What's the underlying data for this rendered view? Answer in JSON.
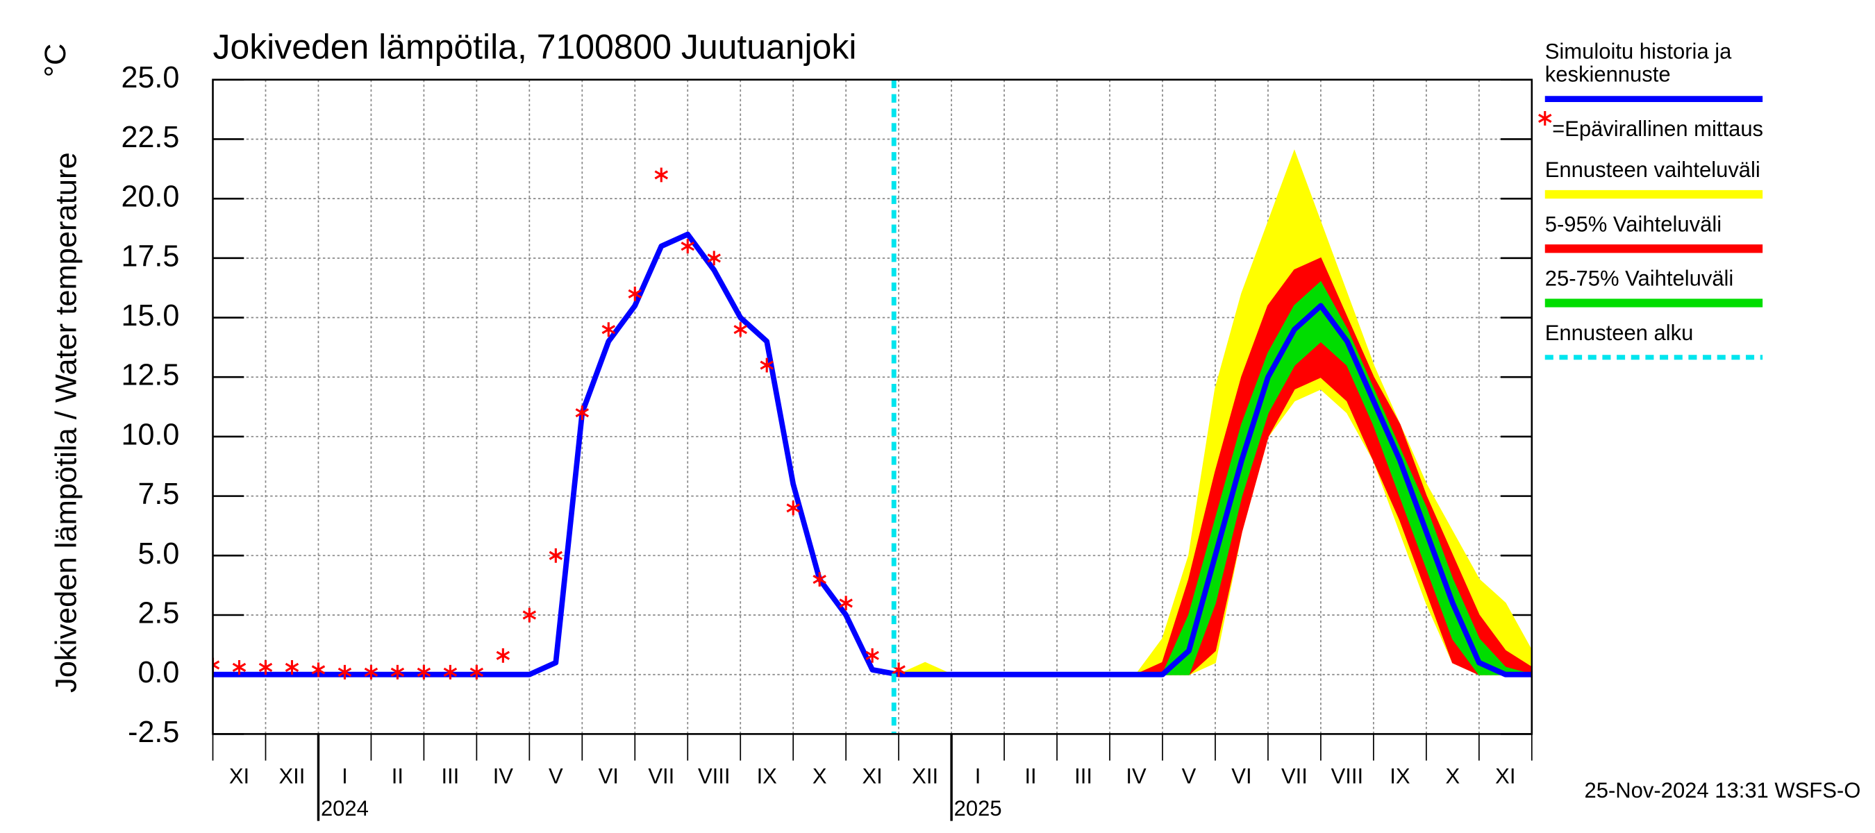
{
  "chart_data": {
    "type": "line",
    "title": "Jokiveden lämpötila, 7100800 Juutuanjoki",
    "y_label": "Jokiveden lämpötila / Water temperature",
    "y_unit": "°C",
    "footer": "25-Nov-2024 13:31 WSFS-O",
    "categories": [
      null,
      "XI",
      null,
      "XII",
      null,
      "I",
      null,
      "II",
      null,
      "III",
      null,
      "IV",
      null,
      "V",
      null,
      "VI",
      null,
      "VII",
      null,
      "VIII",
      null,
      "IX",
      null,
      "X",
      null,
      "XI",
      null,
      "XII",
      null,
      "I",
      null,
      "II",
      null,
      "III",
      null,
      "IV",
      null,
      "V",
      null,
      "VI",
      null,
      "VII",
      null,
      "VIII",
      null,
      "IX",
      null,
      "X",
      null,
      "XI",
      null
    ],
    "year_labels": [
      "2024",
      "2025"
    ],
    "ylim": [
      -2.5,
      25
    ],
    "yticks": [
      -2.5,
      {
        "value": 0,
        "label": "0.0"
      },
      2.5,
      {
        "value": 5,
        "label": "5.0"
      },
      7.5,
      {
        "value": 10,
        "label": "10.0"
      },
      12.5,
      {
        "value": 15,
        "label": "15.0"
      },
      17.5,
      {
        "value": 20,
        "label": "20.0"
      },
      22.5,
      {
        "value": 25,
        "label": "25.0"
      }
    ],
    "grid": true,
    "series": [
      {
        "name": "Simuloitu historia ja keskiennuste",
        "color": "#0000ff",
        "values": [
          0,
          0,
          0,
          0,
          0,
          0,
          0,
          0,
          0,
          0,
          0,
          0,
          0,
          0.5,
          11,
          14,
          15.5,
          18,
          18.5,
          17,
          15,
          14,
          8,
          4,
          2.5,
          0.2,
          0,
          0,
          0,
          0,
          0,
          0,
          0,
          0,
          0,
          0,
          0,
          1,
          5,
          9,
          12.5,
          14.5,
          15.5,
          14,
          11.5,
          9,
          6,
          3,
          0.5,
          0,
          0
        ]
      }
    ],
    "measurements": {
      "name": "=Epävirallinen mittaus",
      "color": "#ff0000",
      "values": [
        0.4,
        0.3,
        0.3,
        0.3,
        0.2,
        0.1,
        0.1,
        0.1,
        0.1,
        0.1,
        0.1,
        0.8,
        2.5,
        5,
        11,
        14.5,
        16,
        21,
        18,
        17.5,
        14.5,
        13,
        7,
        4,
        3,
        0.8,
        0.2,
        null,
        null,
        null,
        null,
        null,
        null,
        null,
        null,
        null,
        null,
        null,
        null,
        null,
        null,
        null,
        null,
        null,
        null,
        null,
        null,
        null,
        null,
        null,
        null
      ]
    },
    "bands": [
      {
        "name": "Ennusteen vaihteluväli",
        "color": "#ffff00",
        "high": [
          null,
          null,
          null,
          null,
          null,
          null,
          null,
          null,
          null,
          null,
          null,
          null,
          null,
          null,
          null,
          null,
          null,
          null,
          null,
          null,
          null,
          null,
          null,
          null,
          null,
          null,
          0,
          0.5,
          0,
          0,
          0,
          0,
          0,
          0,
          0,
          0,
          1.5,
          5,
          12,
          16,
          19,
          22,
          19,
          16,
          13,
          10.5,
          8,
          6,
          4,
          3,
          1
        ],
        "low": [
          null,
          null,
          null,
          null,
          null,
          null,
          null,
          null,
          null,
          null,
          null,
          null,
          null,
          null,
          null,
          null,
          null,
          null,
          null,
          null,
          null,
          null,
          null,
          null,
          null,
          null,
          0,
          0,
          0,
          0,
          0,
          0,
          0,
          0,
          0,
          0,
          0,
          0,
          0.5,
          6,
          10,
          11.5,
          12,
          11,
          9,
          6,
          3,
          0.5,
          0,
          0,
          0
        ]
      },
      {
        "name": "5-95% Vaihteluväli",
        "color": "#ff0000",
        "high": [
          null,
          null,
          null,
          null,
          null,
          null,
          null,
          null,
          null,
          null,
          null,
          null,
          null,
          null,
          null,
          null,
          null,
          null,
          null,
          null,
          null,
          null,
          null,
          null,
          null,
          null,
          0,
          0,
          0,
          0,
          0,
          0,
          0,
          0,
          0,
          0,
          0.5,
          4,
          8.5,
          12.5,
          15.5,
          17,
          17.5,
          15,
          12.5,
          10.5,
          7.5,
          5,
          2.5,
          1,
          0.3
        ],
        "low": [
          null,
          null,
          null,
          null,
          null,
          null,
          null,
          null,
          null,
          null,
          null,
          null,
          null,
          null,
          null,
          null,
          null,
          null,
          null,
          null,
          null,
          null,
          null,
          null,
          null,
          null,
          0,
          0,
          0,
          0,
          0,
          0,
          0,
          0,
          0,
          0,
          0,
          0,
          1,
          6,
          10,
          12,
          12.5,
          11.5,
          9,
          6.5,
          3.5,
          0.5,
          0,
          0,
          0
        ]
      },
      {
        "name": "25-75% Vaihteluväli",
        "color": "#00dd00",
        "high": [
          null,
          null,
          null,
          null,
          null,
          null,
          null,
          null,
          null,
          null,
          null,
          null,
          null,
          null,
          null,
          null,
          null,
          null,
          null,
          null,
          null,
          null,
          null,
          null,
          null,
          null,
          0,
          0,
          0,
          0,
          0,
          0,
          0,
          0,
          0,
          0,
          0,
          2.5,
          6.5,
          10.5,
          13.5,
          15.5,
          16.5,
          14.5,
          12,
          9.5,
          7,
          4,
          1.5,
          0.3,
          0
        ],
        "low": [
          null,
          null,
          null,
          null,
          null,
          null,
          null,
          null,
          null,
          null,
          null,
          null,
          null,
          null,
          null,
          null,
          null,
          null,
          null,
          null,
          null,
          null,
          null,
          null,
          null,
          null,
          0,
          0,
          0,
          0,
          0,
          0,
          0,
          0,
          0,
          0,
          0,
          0,
          3,
          7.5,
          11,
          13,
          14,
          13,
          10.5,
          7.5,
          4.5,
          1.5,
          0,
          0,
          0
        ]
      }
    ],
    "forecast_start": {
      "name": "Ennusteen alku",
      "color": "#00e5ee"
    }
  }
}
